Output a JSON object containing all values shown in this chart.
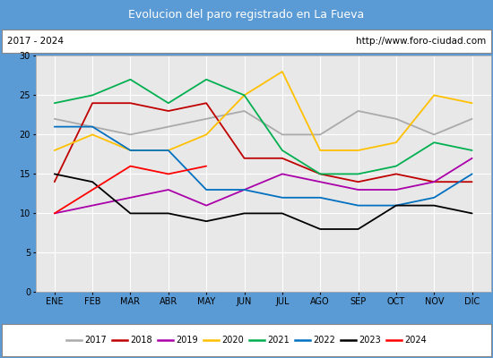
{
  "title": "Evolucion del paro registrado en La Fueva",
  "subtitle_left": "2017 - 2024",
  "subtitle_right": "http://www.foro-ciudad.com",
  "title_bg": "#5b9bd5",
  "title_color": "white",
  "months": [
    "ENE",
    "FEB",
    "MAR",
    "ABR",
    "MAY",
    "JUN",
    "JUL",
    "AGO",
    "SEP",
    "OCT",
    "NOV",
    "DIC"
  ],
  "ylim": [
    0,
    30
  ],
  "yticks": [
    0,
    5,
    10,
    15,
    20,
    25,
    30
  ],
  "series": {
    "2017": {
      "color": "#aaaaaa",
      "values": [
        22,
        21,
        20,
        21,
        22,
        23,
        20,
        20,
        23,
        22,
        20,
        22
      ]
    },
    "2018": {
      "color": "#c00000",
      "values": [
        14,
        24,
        24,
        23,
        24,
        17,
        17,
        15,
        14,
        15,
        14,
        14
      ]
    },
    "2019": {
      "color": "#aa00aa",
      "values": [
        10,
        11,
        12,
        13,
        11,
        13,
        15,
        14,
        13,
        13,
        14,
        17
      ]
    },
    "2020": {
      "color": "#ffc000",
      "values": [
        18,
        20,
        18,
        18,
        20,
        25,
        28,
        18,
        18,
        19,
        25,
        24
      ]
    },
    "2021": {
      "color": "#00b050",
      "values": [
        24,
        25,
        27,
        24,
        27,
        25,
        18,
        15,
        15,
        16,
        19,
        18
      ]
    },
    "2022": {
      "color": "#0070c0",
      "values": [
        21,
        21,
        18,
        18,
        13,
        13,
        12,
        12,
        11,
        11,
        12,
        15
      ]
    },
    "2023": {
      "color": "#000000",
      "values": [
        15,
        14,
        10,
        10,
        9,
        10,
        10,
        8,
        8,
        11,
        11,
        10
      ]
    },
    "2024": {
      "color": "#ff0000",
      "values": [
        10,
        13,
        16,
        15,
        16,
        null,
        null,
        null,
        null,
        null,
        null,
        null
      ]
    }
  },
  "plot_bg": "#e8e8e8",
  "grid_color": "white",
  "border_color": "#5b9bd5",
  "outer_bg": "#f0f0f0"
}
